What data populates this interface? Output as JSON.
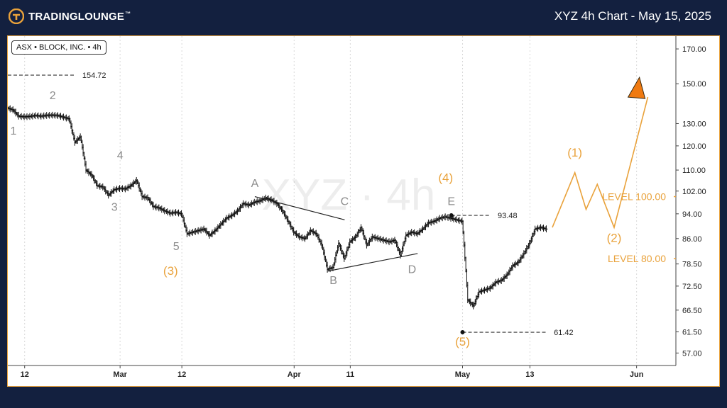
{
  "header": {
    "brand": "TradingLounge",
    "title": "XYZ 4h Chart - May 15, 2025"
  },
  "legend": {
    "exchange": "ASX",
    "company": "BLOCK, INC.",
    "interval": "4h",
    "separator": "•"
  },
  "watermark": "XYZ · 4h",
  "colors": {
    "background": "#13203f",
    "accent": "#e9a23b",
    "wave_gray": "#8c8c8c",
    "candle": "#111111"
  },
  "chart_data": {
    "type": "ohlc",
    "y_scale": "log",
    "ylim": [
      54.5,
      178
    ],
    "yticks": [
      57.0,
      61.5,
      66.5,
      72.5,
      78.5,
      86.0,
      94.0,
      102.0,
      110.0,
      120.0,
      130.0,
      150.0,
      170.0
    ],
    "ytick_labels": [
      "57.00",
      "61.50",
      "66.50",
      "72.50",
      "78.50",
      "86.00",
      "94.00",
      "102.00",
      "110.00",
      "120.00",
      "130.00",
      "150.00",
      "170.00"
    ],
    "xlim": [
      "2025-02-09",
      "2025-06-08"
    ],
    "xticks": [
      {
        "date": "2025-02-12",
        "label": "12"
      },
      {
        "date": "2025-03-01",
        "label": "Mar"
      },
      {
        "date": "2025-03-12",
        "label": "12"
      },
      {
        "date": "2025-04-01",
        "label": "Apr"
      },
      {
        "date": "2025-04-11",
        "label": "11"
      },
      {
        "date": "2025-05-01",
        "label": "May"
      },
      {
        "date": "2025-05-13",
        "label": "13"
      },
      {
        "date": "2025-06-01",
        "label": "Jun"
      }
    ],
    "price_path": [
      [
        "2025-02-09",
        137.5
      ],
      [
        "2025-02-10",
        136.5
      ],
      [
        "2025-02-11",
        133.5
      ],
      [
        "2025-02-12",
        133.2
      ],
      [
        "2025-02-13",
        133.4
      ],
      [
        "2025-02-14",
        133.8
      ],
      [
        "2025-02-15",
        133.5
      ],
      [
        "2025-02-16",
        133.9
      ],
      [
        "2025-02-17",
        134.0
      ],
      [
        "2025-02-18",
        133.8
      ],
      [
        "2025-02-19",
        133.0
      ],
      [
        "2025-02-20",
        132.2
      ],
      [
        "2025-02-21",
        121.5
      ],
      [
        "2025-02-22",
        124.0
      ],
      [
        "2025-02-23",
        110.0
      ],
      [
        "2025-02-24",
        108.0
      ],
      [
        "2025-02-25",
        104.0
      ],
      [
        "2025-02-26",
        103.5
      ],
      [
        "2025-02-27",
        100.5
      ],
      [
        "2025-02-28",
        102.5
      ],
      [
        "2025-03-01",
        103.0
      ],
      [
        "2025-03-02",
        102.8
      ],
      [
        "2025-03-03",
        104.0
      ],
      [
        "2025-03-04",
        106.0
      ],
      [
        "2025-03-05",
        100.0
      ],
      [
        "2025-03-06",
        99.5
      ],
      [
        "2025-03-07",
        96.5
      ],
      [
        "2025-03-08",
        96.0
      ],
      [
        "2025-03-09",
        95.0
      ],
      [
        "2025-03-10",
        94.2
      ],
      [
        "2025-03-11",
        94.5
      ],
      [
        "2025-03-12",
        94.0
      ],
      [
        "2025-03-13",
        87.5
      ],
      [
        "2025-03-14",
        88.0
      ],
      [
        "2025-03-15",
        88.5
      ],
      [
        "2025-03-16",
        89.0
      ],
      [
        "2025-03-17",
        87.0
      ],
      [
        "2025-03-18",
        88.5
      ],
      [
        "2025-03-19",
        90.5
      ],
      [
        "2025-03-20",
        92.5
      ],
      [
        "2025-03-21",
        93.5
      ],
      [
        "2025-03-22",
        95.0
      ],
      [
        "2025-03-23",
        97.5
      ],
      [
        "2025-03-24",
        97.0
      ],
      [
        "2025-03-25",
        98.0
      ],
      [
        "2025-03-26",
        98.5
      ],
      [
        "2025-03-27",
        99.5
      ],
      [
        "2025-03-28",
        98.8
      ],
      [
        "2025-03-29",
        97.5
      ],
      [
        "2025-03-30",
        95.0
      ],
      [
        "2025-03-31",
        91.5
      ],
      [
        "2025-04-01",
        88.0
      ],
      [
        "2025-04-02",
        86.5
      ],
      [
        "2025-04-03",
        86.0
      ],
      [
        "2025-04-04",
        88.5
      ],
      [
        "2025-04-05",
        87.5
      ],
      [
        "2025-04-06",
        84.0
      ],
      [
        "2025-04-07",
        77.0
      ],
      [
        "2025-04-08",
        77.5
      ],
      [
        "2025-04-09",
        84.5
      ],
      [
        "2025-04-10",
        80.0
      ],
      [
        "2025-04-11",
        85.0
      ],
      [
        "2025-04-12",
        86.5
      ],
      [
        "2025-04-13",
        89.5
      ],
      [
        "2025-04-14",
        84.0
      ],
      [
        "2025-04-15",
        86.5
      ],
      [
        "2025-04-16",
        86.0
      ],
      [
        "2025-04-17",
        85.5
      ],
      [
        "2025-04-18",
        85.0
      ],
      [
        "2025-04-19",
        85.5
      ],
      [
        "2025-04-20",
        81.0
      ],
      [
        "2025-04-21",
        87.0
      ],
      [
        "2025-04-22",
        88.0
      ],
      [
        "2025-04-23",
        87.5
      ],
      [
        "2025-04-24",
        89.0
      ],
      [
        "2025-04-25",
        91.0
      ],
      [
        "2025-04-26",
        91.5
      ],
      [
        "2025-04-27",
        92.5
      ],
      [
        "2025-04-28",
        93.0
      ],
      [
        "2025-04-29",
        92.5
      ],
      [
        "2025-04-30",
        92.0
      ],
      [
        "2025-05-01",
        91.5
      ],
      [
        "2025-05-02",
        69.0
      ],
      [
        "2025-05-03",
        67.5
      ],
      [
        "2025-05-04",
        71.0
      ],
      [
        "2025-05-05",
        71.5
      ],
      [
        "2025-05-06",
        72.0
      ],
      [
        "2025-05-07",
        73.5
      ],
      [
        "2025-05-08",
        74.0
      ],
      [
        "2025-05-09",
        75.5
      ],
      [
        "2025-05-10",
        78.0
      ],
      [
        "2025-05-11",
        79.0
      ],
      [
        "2025-05-12",
        81.5
      ],
      [
        "2025-05-13",
        84.5
      ],
      [
        "2025-05-14",
        89.0
      ],
      [
        "2025-05-15",
        89.5
      ],
      [
        "2025-05-16",
        89.0
      ]
    ],
    "wave_labels_gray": [
      {
        "label": "1",
        "date": "2025-02-10",
        "price": 125.0
      },
      {
        "label": "2",
        "date": "2025-02-17",
        "price": 142.0
      },
      {
        "label": "3",
        "date": "2025-02-28",
        "price": 95.0
      },
      {
        "label": "4",
        "date": "2025-03-01",
        "price": 114.5
      },
      {
        "label": "5",
        "date": "2025-03-11",
        "price": 82.5
      },
      {
        "label": "A",
        "date": "2025-03-25",
        "price": 103.5
      },
      {
        "label": "B",
        "date": "2025-04-08",
        "price": 73.0
      },
      {
        "label": "C",
        "date": "2025-04-10",
        "price": 97.0
      },
      {
        "label": "D",
        "date": "2025-04-22",
        "price": 76.0
      },
      {
        "label": "E",
        "date": "2025-04-29",
        "price": 97.0
      }
    ],
    "wave_labels_orange": [
      {
        "label": "(3)",
        "date": "2025-03-10",
        "price": 75.5
      },
      {
        "label": "(4)",
        "date": "2025-04-28",
        "price": 105.5
      },
      {
        "label": "(5)",
        "date": "2025-05-01",
        "price": 58.5
      },
      {
        "label": "(1)",
        "date": "2025-05-21",
        "price": 115.5
      },
      {
        "label": "(2)",
        "date": "2025-05-28",
        "price": 85.0
      }
    ],
    "trendlines": [
      {
        "from": [
          "2025-03-25",
          100.0
        ],
        "to": [
          "2025-04-10",
          92.0
        ]
      },
      {
        "from": [
          "2025-04-07",
          76.5
        ],
        "to": [
          "2025-04-23",
          81.5
        ]
      }
    ],
    "projection": [
      [
        "2025-05-17",
        89.5
      ],
      [
        "2025-05-21",
        109.0
      ],
      [
        "2025-05-23",
        95.5
      ],
      [
        "2025-05-25",
        104.5
      ],
      [
        "2025-05-28",
        89.5
      ],
      [
        "2025-06-03",
        143.0
      ]
    ],
    "projection_arrow": {
      "date": "2025-06-01",
      "price": 147.0
    },
    "levels": [
      {
        "label": "LEVEL 100.00",
        "price": 100.0
      },
      {
        "label": "LEVEL 80.00",
        "price": 80.0
      }
    ],
    "price_markers": [
      {
        "label": "154.72",
        "price": 154.72,
        "from": "2025-02-09",
        "to": "2025-02-21",
        "dot": false
      },
      {
        "label": "93.48",
        "price": 93.48,
        "from": "2025-04-29",
        "to": "2025-05-06",
        "dot": true
      },
      {
        "label": "61.42",
        "price": 61.42,
        "from": "2025-05-01",
        "to": "2025-05-16",
        "dot": true
      }
    ]
  }
}
